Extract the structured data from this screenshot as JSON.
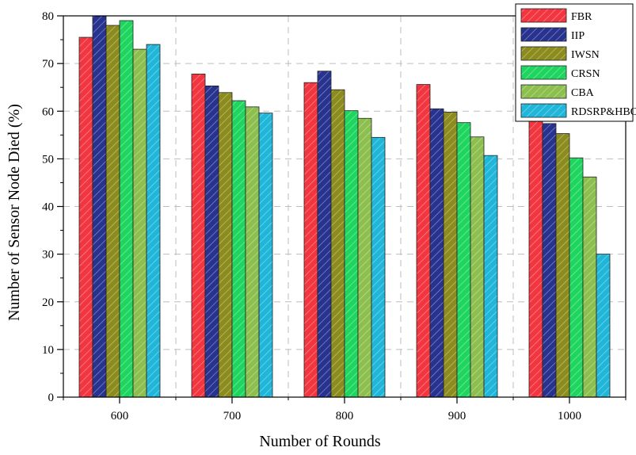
{
  "chart_data": {
    "type": "bar",
    "title": "",
    "xlabel": "Number of Rounds",
    "ylabel": "Number of Sensor Node Died (%)",
    "categories": [
      "600",
      "700",
      "800",
      "900",
      "1000"
    ],
    "ylim": [
      0,
      80
    ],
    "yticks": [
      "0",
      "10",
      "20",
      "30",
      "40",
      "50",
      "60",
      "70",
      "80"
    ],
    "grid": true,
    "legend_position": "top-right",
    "series": [
      {
        "name": "FBR",
        "color": "#f2353f",
        "values": [
          75.5,
          67.8,
          66.0,
          65.6,
          60.5
        ]
      },
      {
        "name": "IIP",
        "color": "#27338f",
        "values": [
          80.0,
          65.3,
          68.4,
          60.5,
          57.4
        ]
      },
      {
        "name": "IWSN",
        "color": "#8c8c1e",
        "values": [
          78.0,
          63.9,
          64.5,
          59.8,
          55.3
        ]
      },
      {
        "name": "CRSN",
        "color": "#1ed65f",
        "values": [
          79.0,
          62.2,
          60.1,
          57.6,
          50.2
        ]
      },
      {
        "name": "CBA",
        "color": "#8dbf4f",
        "values": [
          73.0,
          60.9,
          58.5,
          54.6,
          46.2
        ]
      },
      {
        "name": "RDSRP&HBO",
        "color": "#1fb6d9",
        "values": [
          74.0,
          59.6,
          54.5,
          50.7,
          30.0
        ]
      }
    ]
  }
}
